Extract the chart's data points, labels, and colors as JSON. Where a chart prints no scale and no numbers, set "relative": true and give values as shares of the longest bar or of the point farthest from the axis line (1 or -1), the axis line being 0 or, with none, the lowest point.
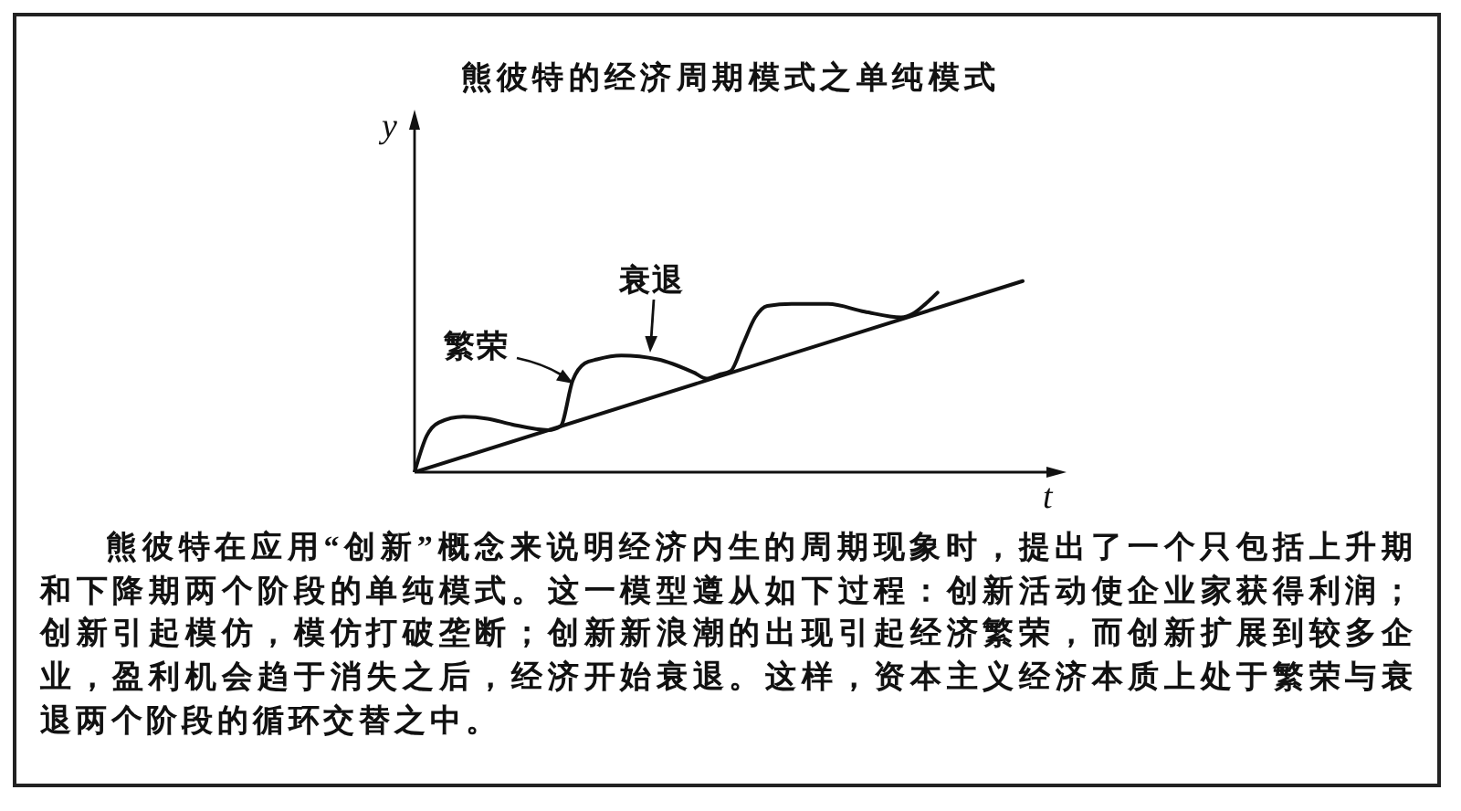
{
  "chart_data": {
    "type": "line",
    "title": "熊彼特的经济周期模式之单纯模式",
    "xlabel": "t",
    "ylabel": "y",
    "relative": true,
    "marker": "none",
    "categories": [
      null,
      null,
      null,
      null,
      null,
      null,
      null,
      null,
      null,
      null,
      null,
      null,
      null,
      null,
      null,
      null,
      null,
      null,
      null,
      null,
      null,
      null,
      null,
      null,
      null,
      null,
      null,
      null,
      null,
      null,
      null,
      null,
      null,
      null,
      null,
      null,
      null,
      null,
      null,
      null,
      null,
      null,
      null,
      null,
      null,
      null,
      null,
      null,
      null,
      null,
      null
    ],
    "series": [
      {
        "color": "#111111",
        "values": [
          0,
          0.19,
          0.26,
          null,
          0.29,
          null,
          0.28,
          null,
          0.25,
          null,
          null,
          0.22,
          0.24,
          0.48,
          0.57,
          0.59,
          null,
          0.61,
          null,
          null,
          0.59,
          null,
          null,
          0.52,
          0.49,
          0.51,
          0.53,
          0.67,
          0.81,
          0.87,
          null,
          0.88,
          null,
          null,
          0.88,
          null,
          null,
          0.84,
          null,
          null,
          0.81,
          0.83,
          0.88,
          0.94,
          null,
          null,
          null,
          null,
          null,
          null,
          null
        ]
      },
      {
        "color": "#111111",
        "values": [
          0,
          null,
          null,
          null,
          null,
          null,
          null,
          null,
          null,
          null,
          null,
          null,
          null,
          null,
          null,
          null,
          null,
          null,
          null,
          null,
          null,
          null,
          null,
          null,
          null,
          null,
          null,
          null,
          null,
          null,
          null,
          null,
          null,
          null,
          null,
          null,
          null,
          null,
          null,
          null,
          null,
          null,
          null,
          null,
          null,
          null,
          null,
          null,
          null,
          null,
          1
        ]
      }
    ],
    "annotations": [
      "繁荣",
      "衰退",
      "熊彼特在应用“创新”概念来说明经济内生的周期现象时，提出了一个只包括上升期和下降期两个阶段的单纯模式。这一模型遵从如下过程：创新活动使企业家获得利润；创新引起模仿，模仿打破垄断；创新新浪潮的出现引起经济繁荣，而创新扩展到较多企业，盈利机会趋于消失之后，经济开始衰退。这样，资本主义经济本质上处于繁荣与衰退两个阶段的循环交替之中。"
    ]
  }
}
